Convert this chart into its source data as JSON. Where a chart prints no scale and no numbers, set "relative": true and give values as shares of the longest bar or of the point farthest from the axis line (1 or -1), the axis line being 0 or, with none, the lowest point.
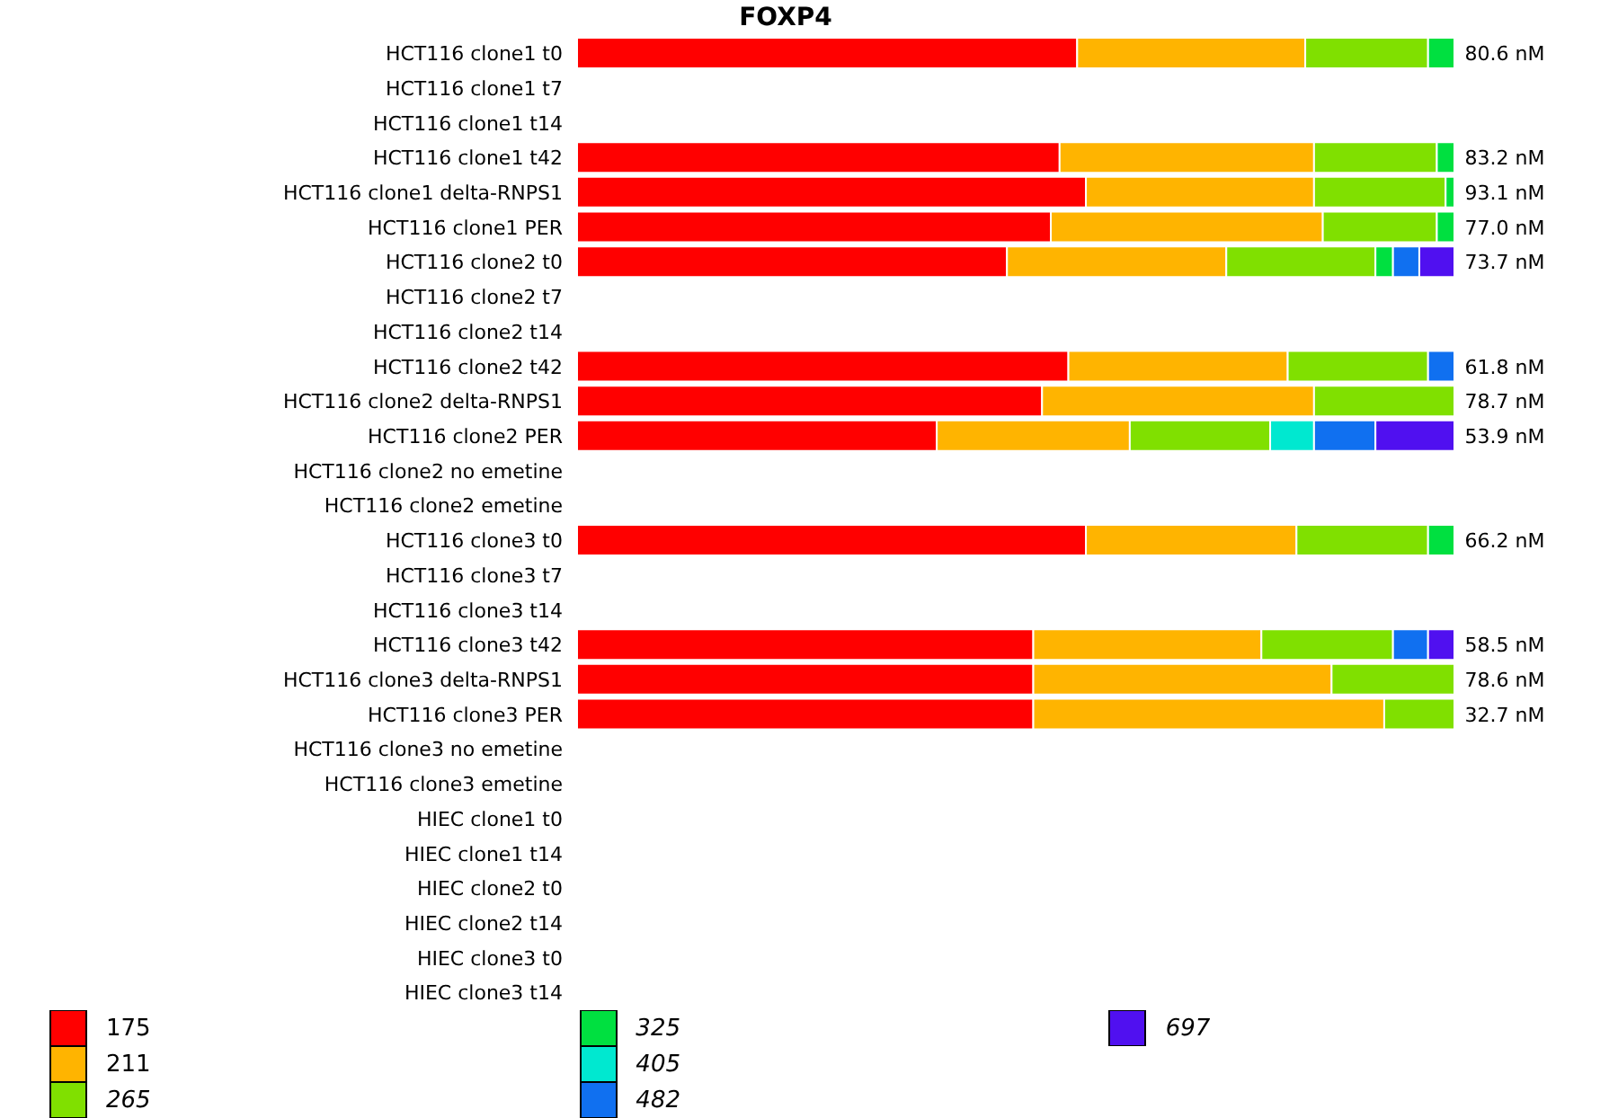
{
  "chart_data": {
    "type": "bar",
    "title": "FOXP4",
    "orientation": "horizontal",
    "stacked": true,
    "relative": true,
    "legend": "bottom",
    "categories": [
      "HCT116 clone1 t0",
      "HCT116 clone1 t7",
      "HCT116 clone1 t14",
      "HCT116 clone1 t42",
      "HCT116 clone1 delta-RNPS1",
      "HCT116 clone1 PER",
      "HCT116 clone2 t0",
      "HCT116 clone2 t7",
      "HCT116 clone2 t14",
      "HCT116 clone2 t42",
      "HCT116 clone2 delta-RNPS1",
      "HCT116 clone2 PER",
      "HCT116 clone2 no emetine",
      "HCT116 clone2 emetine",
      "HCT116 clone3 t0",
      "HCT116 clone3 t7",
      "HCT116 clone3 t14",
      "HCT116 clone3 t42",
      "HCT116 clone3 delta-RNPS1",
      "HCT116 clone3 PER",
      "HCT116 clone3 no emetine",
      "HCT116 clone3 emetine",
      "HIEC clone1 t0",
      "HIEC clone1 t14",
      "HIEC clone2 t0",
      "HIEC clone2 t14",
      "HIEC clone3 t0",
      "HIEC clone3 t14"
    ],
    "series": [
      {
        "name": "175",
        "color": "#ff0000",
        "values": [
          0.57,
          null,
          null,
          0.55,
          0.58,
          0.54,
          0.49,
          null,
          null,
          0.56,
          0.53,
          0.41,
          null,
          null,
          0.58,
          null,
          null,
          0.52,
          0.52,
          0.52,
          null,
          null,
          null,
          null,
          null,
          null,
          null,
          null
        ]
      },
      {
        "name": "211",
        "color": "#ffb400",
        "values": [
          0.26,
          null,
          null,
          0.29,
          0.26,
          0.31,
          0.25,
          null,
          null,
          0.25,
          0.31,
          0.22,
          null,
          null,
          0.24,
          null,
          null,
          0.26,
          0.34,
          0.4,
          null,
          null,
          null,
          null,
          null,
          null,
          null,
          null
        ]
      },
      {
        "name": "265",
        "color": "#80e000",
        "values": [
          0.14,
          null,
          null,
          0.14,
          0.15,
          0.13,
          0.17,
          null,
          null,
          0.16,
          0.16,
          0.16,
          null,
          null,
          0.15,
          null,
          null,
          0.15,
          0.14,
          0.08,
          null,
          null,
          null,
          null,
          null,
          null,
          null,
          null
        ]
      },
      {
        "name": "325",
        "color": "#00e040",
        "values": [
          0.03,
          null,
          null,
          0.02,
          0.01,
          0.02,
          0.02,
          null,
          null,
          null,
          null,
          null,
          null,
          null,
          0.03,
          null,
          null,
          null,
          null,
          null,
          null,
          null,
          null,
          null,
          null,
          null,
          null,
          null
        ]
      },
      {
        "name": "405",
        "color": "#00e8d0",
        "values": [
          null,
          null,
          null,
          null,
          null,
          null,
          null,
          null,
          null,
          null,
          null,
          0.05,
          null,
          null,
          null,
          null,
          null,
          null,
          null,
          null,
          null,
          null,
          null,
          null,
          null,
          null,
          null,
          null
        ]
      },
      {
        "name": "482",
        "color": "#1070f0",
        "values": [
          null,
          null,
          null,
          null,
          null,
          null,
          0.03,
          null,
          null,
          0.03,
          null,
          0.07,
          null,
          null,
          null,
          null,
          null,
          0.04,
          null,
          null,
          null,
          null,
          null,
          null,
          null,
          null,
          null,
          null
        ]
      },
      {
        "name": "697",
        "color": "#5010f0",
        "values": [
          null,
          null,
          null,
          null,
          null,
          null,
          0.04,
          null,
          null,
          null,
          null,
          0.09,
          null,
          null,
          null,
          null,
          null,
          0.03,
          null,
          null,
          null,
          null,
          null,
          null,
          null,
          null,
          null,
          null
        ]
      }
    ],
    "annotations": [
      "80.6 nM",
      "83.2 nM",
      "93.1 nM",
      "77.0 nM",
      "73.7 nM",
      "61.8 nM",
      "78.7 nM",
      "53.9 nM",
      "66.2 nM",
      "58.5 nM",
      "78.6 nM",
      "32.7 nM"
    ]
  }
}
